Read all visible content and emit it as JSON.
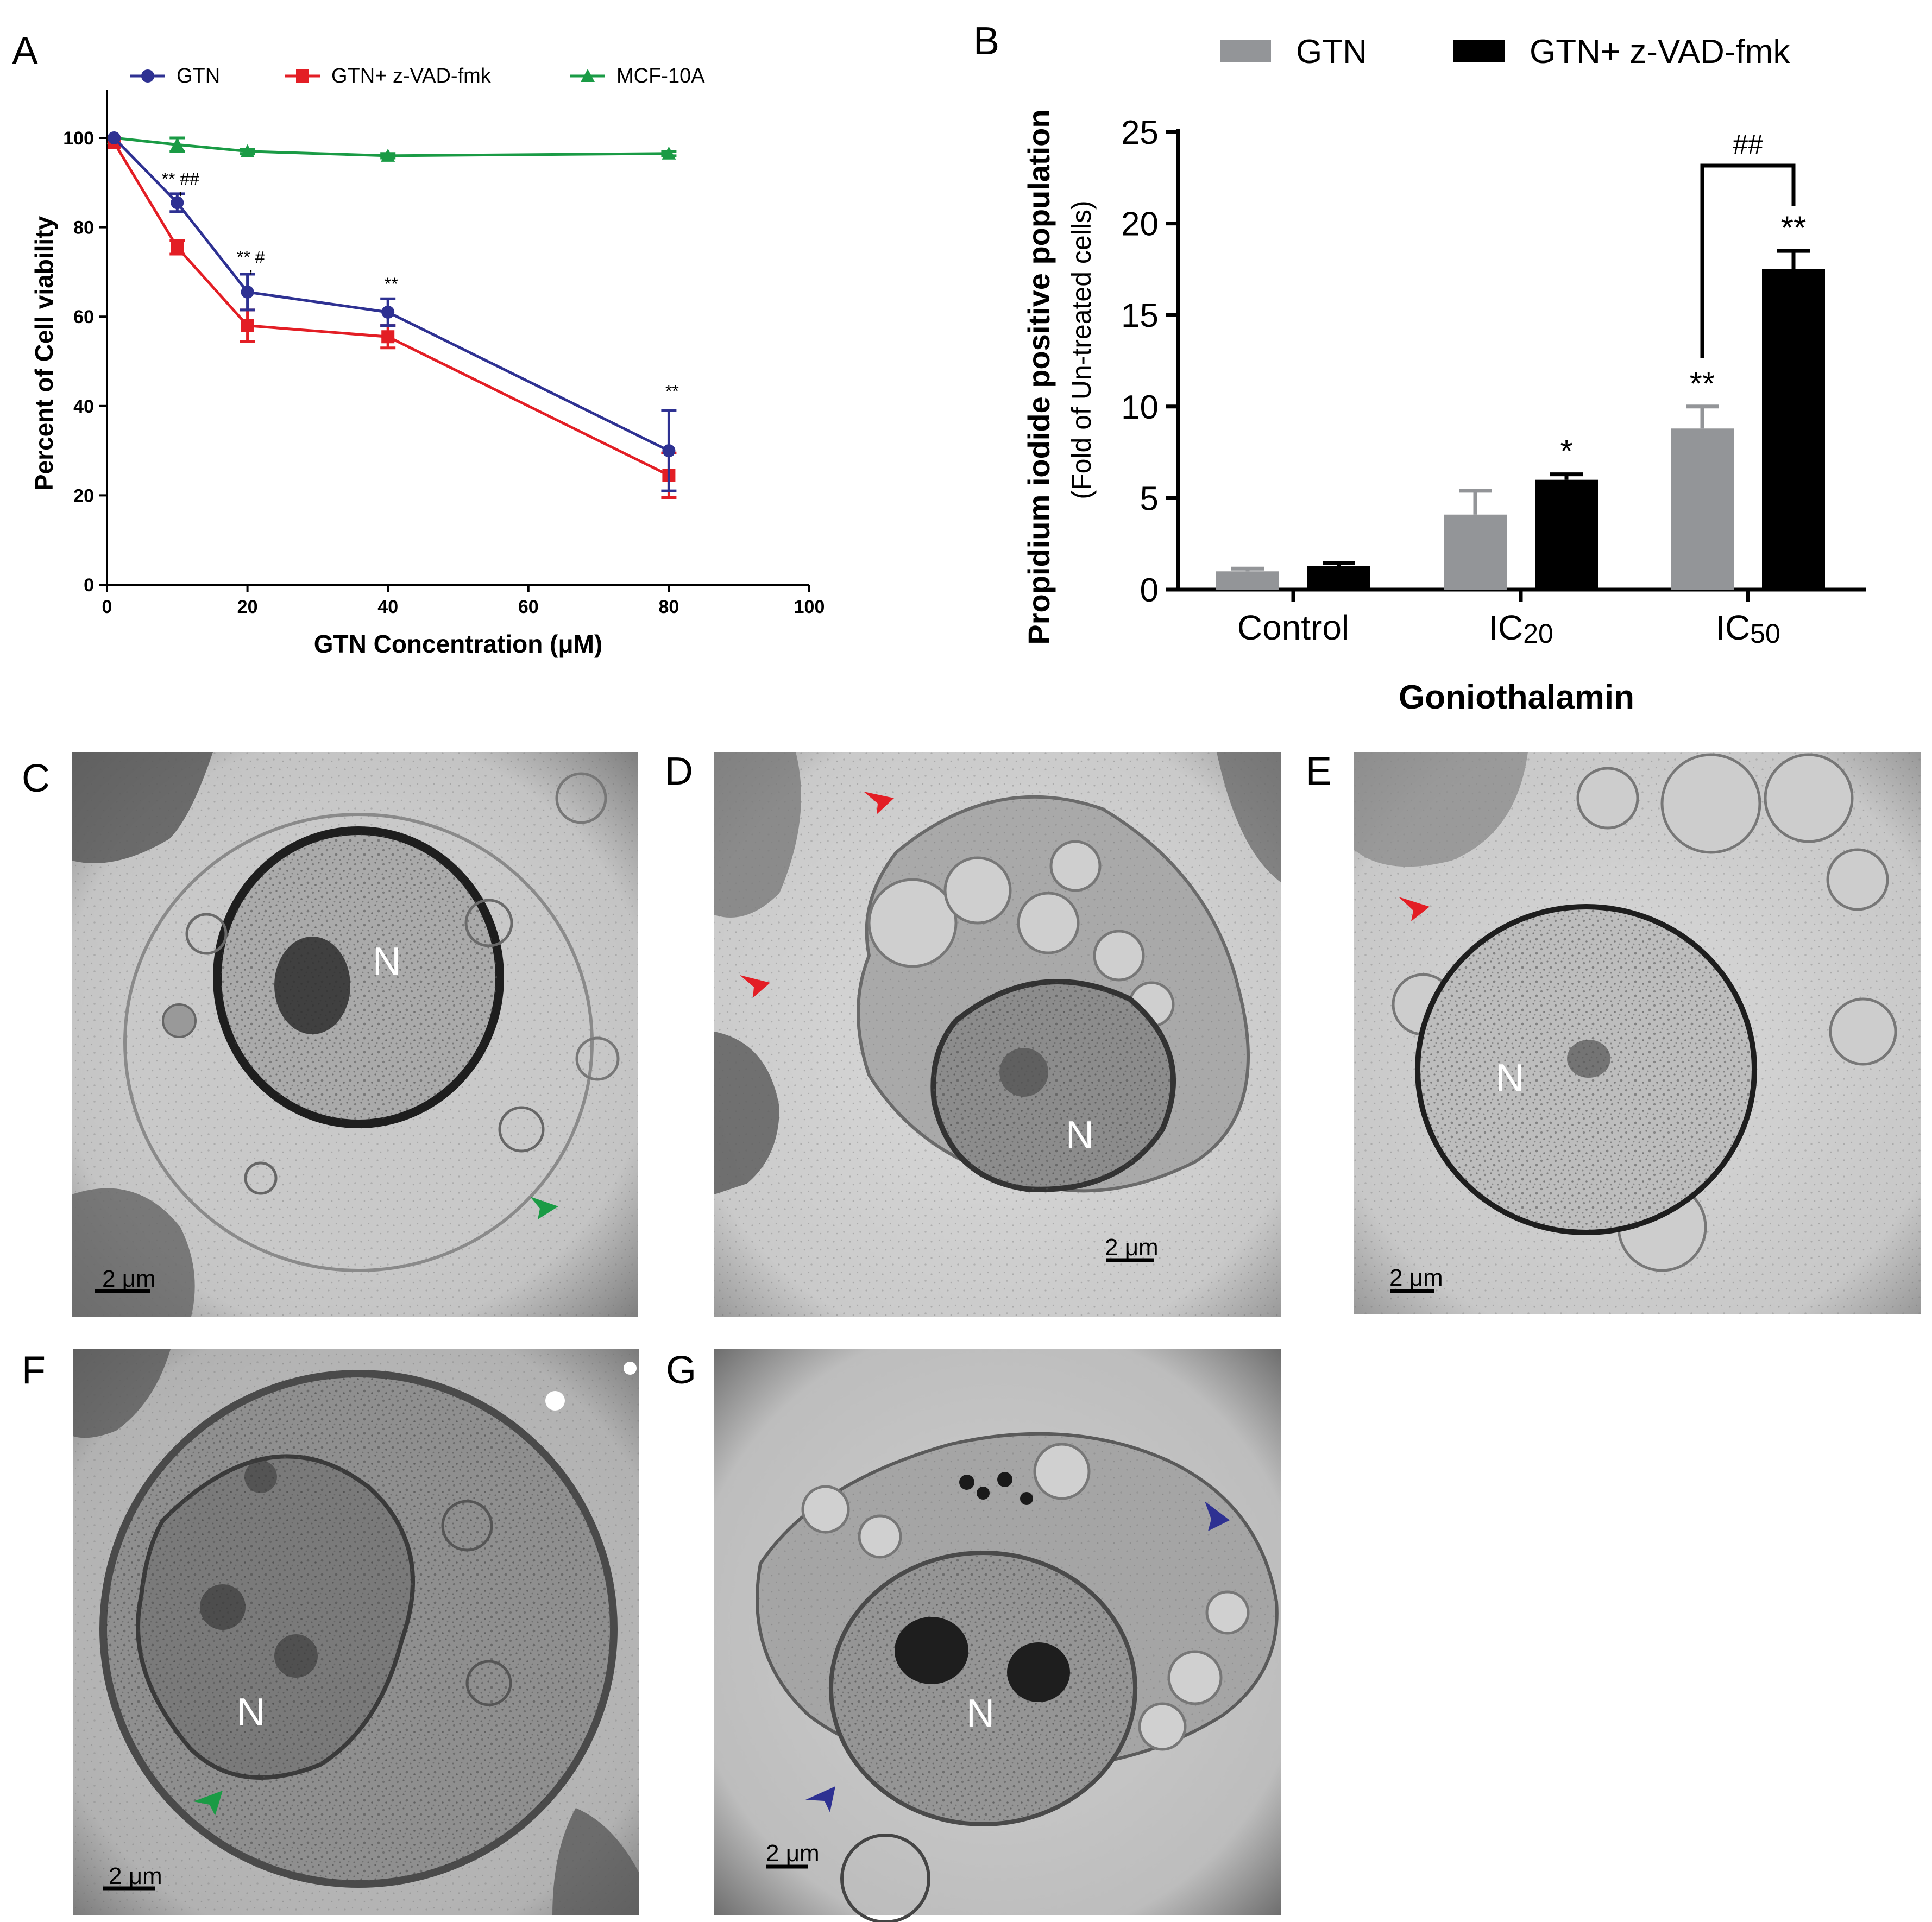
{
  "panels": {
    "A": "A",
    "B": "B",
    "C": "C",
    "D": "D",
    "E": "E",
    "F": "F",
    "G": "G"
  },
  "chart_data": [
    {
      "type": "line",
      "panel": "A",
      "xlabel": "GTN Concentration (μM)",
      "ylabel": "Percent of Cell viability",
      "xlim": [
        0,
        100
      ],
      "ylim": [
        0,
        100
      ],
      "xticks": [
        "0",
        "20",
        "40",
        "60",
        "80",
        "100"
      ],
      "yticks": [
        "0",
        "20",
        "40",
        "60",
        "80",
        "100"
      ],
      "legend_position": "top",
      "series": [
        {
          "name": "GTN",
          "color": "#2e3192",
          "marker": "circle",
          "x": [
            1,
            10,
            20,
            40,
            80
          ],
          "y": [
            100,
            85.5,
            65.5,
            61,
            30
          ],
          "err": [
            0,
            2,
            4,
            3,
            9
          ]
        },
        {
          "name": "GTN+ z-VAD-fmk",
          "color": "#e31e25",
          "marker": "square",
          "x": [
            1,
            10,
            20,
            40,
            80
          ],
          "y": [
            99,
            75.5,
            58,
            55.5,
            24.5
          ],
          "err": [
            0,
            1.5,
            3.5,
            2.5,
            5
          ]
        },
        {
          "name": "MCF-10A",
          "color": "#1a9b45",
          "marker": "triangle",
          "x": [
            1,
            10,
            20,
            40,
            80
          ],
          "y": [
            100,
            98.5,
            97,
            96,
            96.5
          ],
          "err": [
            0,
            1.5,
            0.5,
            0.5,
            0.5
          ]
        }
      ],
      "annotations": [
        {
          "x": 10,
          "y": 89.5,
          "text": "** ##"
        },
        {
          "x": 10,
          "y": 87.5,
          "text": ","
        },
        {
          "x": 20,
          "y": 72,
          "text": "** #"
        },
        {
          "x": 20,
          "y": 70,
          "text": ","
        },
        {
          "x": 40,
          "y": 66,
          "text": "**"
        },
        {
          "x": 80,
          "y": 42,
          "text": "**"
        }
      ]
    },
    {
      "type": "bar",
      "panel": "B",
      "title": "",
      "xlabel": "Goniothalamin",
      "ylabel": "Propidium iodide positive population",
      "ylabel_sub": "(Fold of Un-treated cells)",
      "ylim": [
        0,
        25
      ],
      "yticks": [
        "0",
        "5",
        "10",
        "15",
        "20",
        "25"
      ],
      "categories": [
        {
          "base": "Control",
          "sub": ""
        },
        {
          "base": "IC",
          "sub": "20"
        },
        {
          "base": "IC",
          "sub": "50"
        }
      ],
      "legend_position": "top",
      "series": [
        {
          "name": "GTN",
          "color": "#939598",
          "values": [
            1.0,
            4.1,
            8.8
          ],
          "err": [
            0.15,
            1.3,
            1.2
          ]
        },
        {
          "name": "GTN+ z-VAD-fmk",
          "color": "#000000",
          "values": [
            1.3,
            6.0,
            17.5
          ],
          "err": [
            0.15,
            0.3,
            1.0
          ]
        }
      ],
      "annotations": [
        {
          "category": 1,
          "series": 1,
          "text": "*"
        },
        {
          "category": 2,
          "series": 0,
          "text": "**"
        },
        {
          "category": 2,
          "series": 1,
          "text": "**"
        }
      ],
      "bracket": {
        "category": 2,
        "text": "##"
      }
    }
  ],
  "micrographs": [
    {
      "panel": "C",
      "nucleus": "N",
      "scale": "2  μm"
    },
    {
      "panel": "D",
      "nucleus": "N",
      "scale": "2  μm"
    },
    {
      "panel": "E",
      "nucleus": "N",
      "scale": "2  μm"
    },
    {
      "panel": "F",
      "nucleus": "N",
      "scale": "2  μm"
    },
    {
      "panel": "G",
      "nucleus": "N",
      "scale": "2  μm"
    }
  ],
  "colors": {
    "arrow_red": "#e31e25",
    "arrow_green": "#1a9b45",
    "arrow_blue": "#2e3192"
  }
}
